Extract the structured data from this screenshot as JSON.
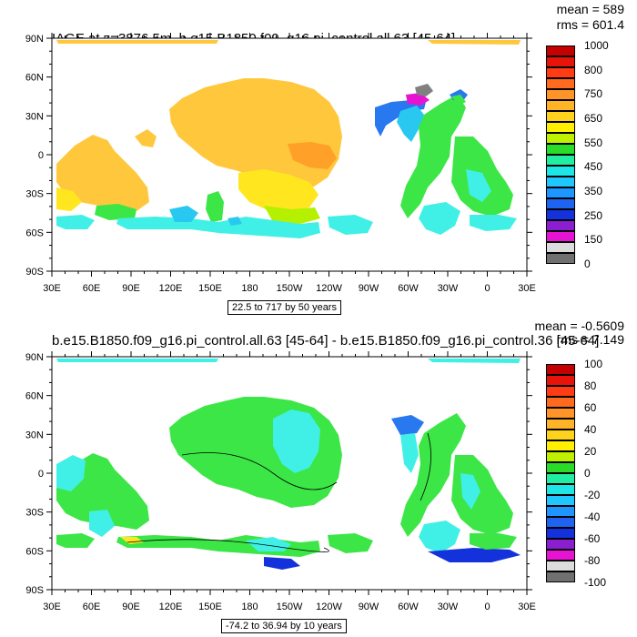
{
  "panels": [
    {
      "title": "IAGE at z=3876.5m, b.e15.B1850.f09_g16.pi_control.all.63 [45-64]",
      "stat_mean": "mean = 589",
      "stat_rms": "rms = 601.4",
      "range_note": "22.5 to 717 by 50 years",
      "colorbar": {
        "labels": [
          "1000",
          "800",
          "750",
          "650",
          "550",
          "450",
          "350",
          "250",
          "150",
          "0"
        ],
        "colors": [
          "#c40000",
          "#e8140a",
          "#ff3c14",
          "#ff6a1e",
          "#ff9428",
          "#ffb428",
          "#ffd21e",
          "#fff000",
          "#bef000",
          "#28dc28",
          "#20eea0",
          "#1ee6e6",
          "#1ec8ff",
          "#1e96ff",
          "#1e64f0",
          "#1432dc",
          "#8c1ed2",
          "#e614d2",
          "#dcdcdc",
          "#707070"
        ]
      }
    },
    {
      "title": "b.e15.B1850.f09_g16.pi_control.all.63 [45-64] - b.e15.B1850.f09_g16.pi_control.36 [45-64]",
      "stat_mean": "mean = -0.5609",
      "stat_rms": "rms = 7.149",
      "range_note": "-74.2 to 36.94 by 10 years",
      "colorbar": {
        "labels": [
          "100",
          "80",
          "60",
          "40",
          "20",
          "0",
          "-20",
          "-40",
          "-60",
          "-80",
          "-100"
        ],
        "colors": [
          "#c40000",
          "#e8140a",
          "#ff3c14",
          "#ff6a1e",
          "#ff9428",
          "#ffb428",
          "#ffd21e",
          "#fff000",
          "#bef000",
          "#28dc28",
          "#20eea0",
          "#1ee6e6",
          "#1ec8ff",
          "#1e96ff",
          "#1e64f0",
          "#1432dc",
          "#8c1ed2",
          "#e614d2",
          "#dcdcdc",
          "#707070"
        ]
      }
    }
  ],
  "axes": {
    "lat_labels": [
      "90N",
      "60N",
      "30N",
      "0",
      "30S",
      "60S",
      "90S"
    ],
    "lon_labels": [
      "30E",
      "60E",
      "90E",
      "120E",
      "150E",
      "180",
      "150W",
      "120W",
      "90W",
      "60W",
      "30W",
      "0",
      "30E"
    ]
  },
  "map_colors": {
    "orange": "#ffc83c",
    "dark_orange": "#ffa028",
    "yellow": "#ffe61e",
    "green": "#3ce646",
    "light_green": "#6ee650",
    "cyan": "#40f0e6",
    "light_blue": "#28c8f0",
    "blue": "#2878f0",
    "dark_blue": "#1432dc",
    "magenta": "#e614d2",
    "gray": "#808080",
    "lime": "#b4f000"
  }
}
